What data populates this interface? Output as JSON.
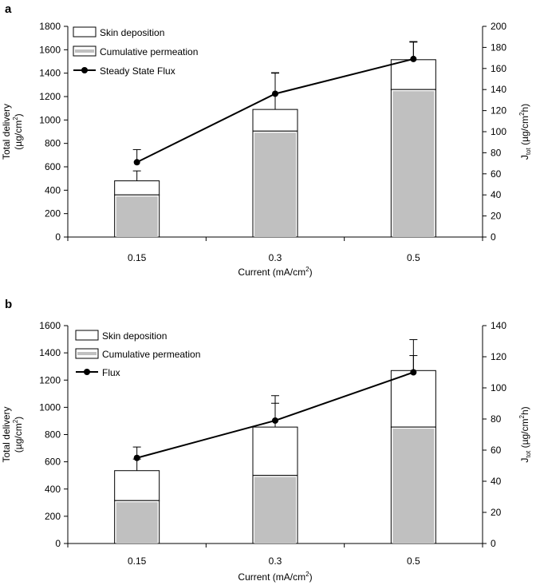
{
  "chart_data": [
    {
      "panel": "a",
      "type": "bar",
      "categories": [
        "0.15",
        "0.3",
        "0.5"
      ],
      "xlabel_text": "Current (mA/cm",
      "xlabel_sup": "2",
      "xlabel_close": ")",
      "ylabel_line1": "Total delivery",
      "ylabel_line2_text": "(µg/cm",
      "ylabel_line2_sup": "2",
      "ylabel_line2_close": ")",
      "ylabel_right_J": "J",
      "ylabel_right_sub": "tot",
      "ylabel_right_text": " (µg/cm",
      "ylabel_right_sup": "2",
      "ylabel_right_close": "h)",
      "ylim": [
        0,
        1800
      ],
      "yticks": [
        0,
        200,
        400,
        600,
        800,
        1000,
        1200,
        1400,
        1600,
        1800
      ],
      "y2lim": [
        0,
        200
      ],
      "y2ticks": [
        0,
        20,
        40,
        60,
        80,
        100,
        120,
        140,
        160,
        180,
        200
      ],
      "series": [
        {
          "name": "Skin deposition",
          "kind": "bar-stack-top",
          "total": [
            480,
            1090,
            1515
          ],
          "error": [
            85,
            310,
            155
          ]
        },
        {
          "name": "Cumulative permeation",
          "kind": "bar-stack-base",
          "values": [
            360,
            905,
            1260
          ]
        },
        {
          "name": "Steady State Flux",
          "kind": "line",
          "axis": "right",
          "values": [
            71,
            136,
            169
          ],
          "error": [
            12,
            20,
            16
          ]
        }
      ],
      "legend_position": "top-left"
    },
    {
      "panel": "b",
      "type": "bar",
      "categories": [
        "0.15",
        "0.3",
        "0.5"
      ],
      "xlabel_text": "Current (mA/cm",
      "xlabel_sup": "2",
      "xlabel_close": ")",
      "ylabel_line1": "Total delivery",
      "ylabel_line2_text": "(µg/cm",
      "ylabel_line2_sup": "2",
      "ylabel_line2_close": ")",
      "ylabel_right_J": "J",
      "ylabel_right_sub": "tot",
      "ylabel_right_text": " (µg/cm",
      "ylabel_right_sup": "2",
      "ylabel_right_close": "h)",
      "ylim": [
        0,
        1600
      ],
      "yticks": [
        0,
        200,
        400,
        600,
        800,
        1000,
        1200,
        1400,
        1600
      ],
      "y2lim": [
        0,
        140
      ],
      "y2ticks": [
        0,
        20,
        40,
        60,
        80,
        100,
        120,
        140
      ],
      "series": [
        {
          "name": "Skin deposition",
          "kind": "bar-stack-top",
          "total": [
            535,
            855,
            1270
          ],
          "error": [
            85,
            175,
            110
          ]
        },
        {
          "name": "Cumulative permeation",
          "kind": "bar-stack-base",
          "values": [
            315,
            500,
            855
          ]
        },
        {
          "name": "Flux",
          "kind": "line",
          "axis": "right",
          "values": [
            55,
            79,
            110
          ],
          "error": [
            7,
            16,
            21
          ]
        }
      ],
      "legend_position": "top-left"
    }
  ],
  "colors": {
    "permeation_fill": "#c0c0c0",
    "deposition_fill": "#ffffff",
    "line": "#000000"
  }
}
